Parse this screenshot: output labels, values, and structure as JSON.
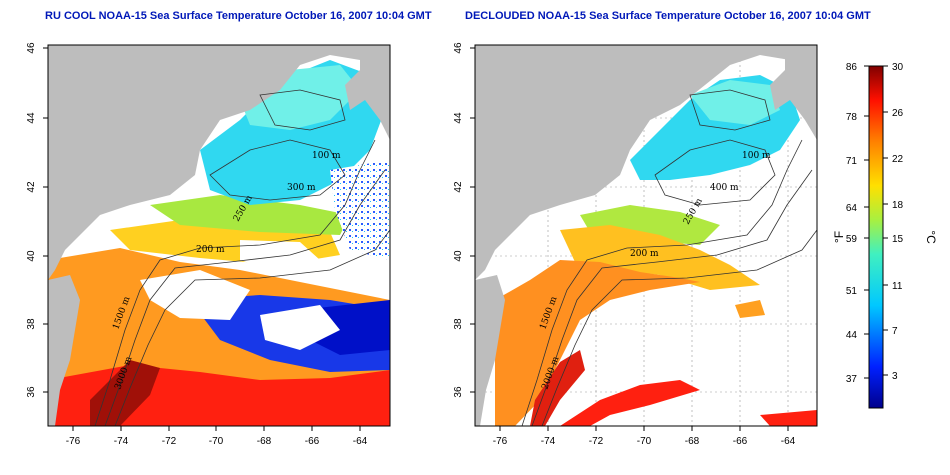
{
  "titles": {
    "left": "RU COOL NOAA-15 Sea Surface Temperature October 16, 2007 10:04 GMT",
    "right": "DECLOUDED NOAA-15 Sea Surface Temperature October 16, 2007 10:04 GMT"
  },
  "axes": {
    "x_ticks": [
      "-76",
      "-74",
      "-72",
      "-70",
      "-68",
      "-66",
      "-64"
    ],
    "y_ticks": [
      "36",
      "38",
      "40",
      "42",
      "44",
      "46"
    ]
  },
  "isobath_labels": {
    "left": [
      "100 m",
      "300 m",
      "250 m",
      "200 m",
      "3000 m",
      "1500 m"
    ],
    "right": [
      "100 m",
      "400 m",
      "250 m",
      "200 m",
      "2000 m",
      "1500 m"
    ]
  },
  "colorbar": {
    "fahrenheit_ticks": [
      "86",
      "78",
      "71",
      "64",
      "59",
      "51",
      "44",
      "37"
    ],
    "celsius_ticks": [
      "30",
      "26",
      "22",
      "18",
      "15",
      "11",
      "7",
      "3"
    ],
    "label_f": "°F",
    "label_c": "°C",
    "range_c": [
      0,
      30
    ]
  },
  "colors": {
    "land": "#bdbdbd",
    "cloud": "#ffffff",
    "title": "#0018b8",
    "contour": "#333333"
  }
}
